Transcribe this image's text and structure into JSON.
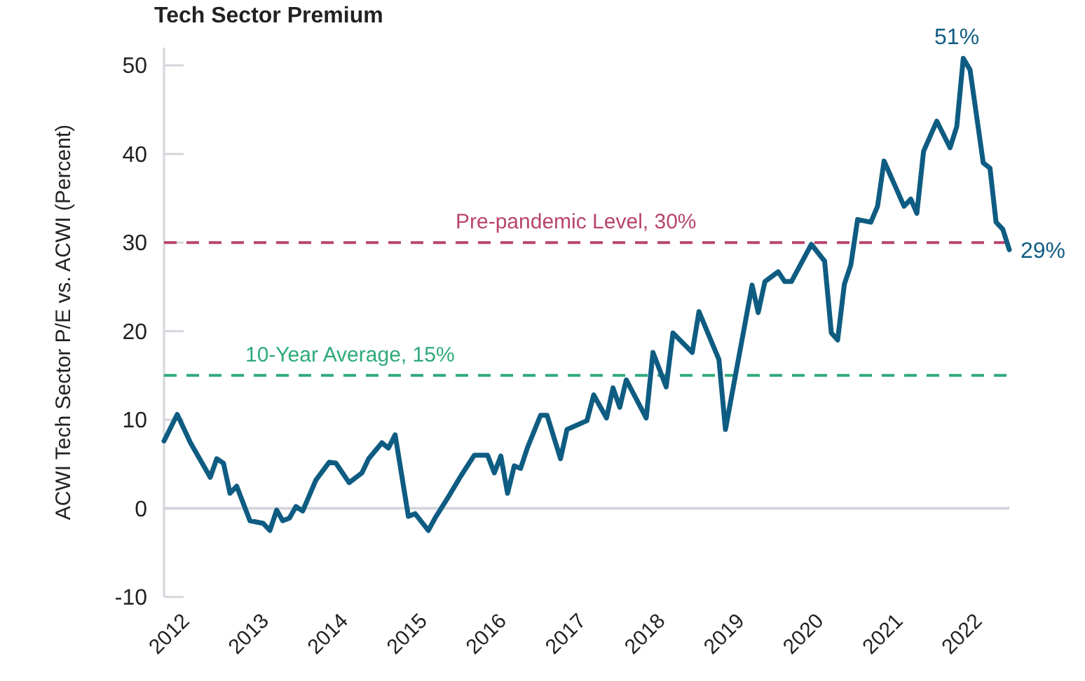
{
  "chart_data": {
    "type": "line",
    "title": "Tech Sector Premium",
    "ylabel": "ACWI Tech Sector P/E vs. ACWI (Percent)",
    "x": [
      "2011-09",
      "2011-11",
      "2012-01",
      "2012-04",
      "2012-05",
      "2012-06",
      "2012-07",
      "2012-08",
      "2012-10",
      "2012-12",
      "2013-01",
      "2013-02",
      "2013-03",
      "2013-04",
      "2013-05",
      "2013-06",
      "2013-08",
      "2013-10",
      "2013-11",
      "2014-01",
      "2014-03",
      "2014-04",
      "2014-06",
      "2014-07",
      "2014-08",
      "2014-10",
      "2014-11",
      "2015-01",
      "2015-02",
      "2015-04",
      "2015-06",
      "2015-08",
      "2015-10",
      "2015-11",
      "2015-12",
      "2016-01",
      "2016-02",
      "2016-03",
      "2016-04",
      "2016-06",
      "2016-07",
      "2016-09",
      "2016-10",
      "2017-01",
      "2017-02",
      "2017-04",
      "2017-05",
      "2017-06",
      "2017-07",
      "2017-10",
      "2017-11",
      "2018-01",
      "2018-02",
      "2018-05",
      "2018-06",
      "2018-09",
      "2018-10",
      "2019-02",
      "2019-03",
      "2019-04",
      "2019-06",
      "2019-07",
      "2019-08",
      "2019-11",
      "2020-01",
      "2020-02",
      "2020-03",
      "2020-04",
      "2020-05",
      "2020-06",
      "2020-08",
      "2020-09",
      "2020-10",
      "2021-01",
      "2021-02",
      "2021-03",
      "2021-04",
      "2021-06",
      "2021-08",
      "2021-09",
      "2021-10",
      "2021-11",
      "2022-01",
      "2022-02",
      "2022-03",
      "2022-04",
      "2022-05"
    ],
    "series": [
      {
        "color": "#0f5c82",
        "values": [
          7.6,
          10.6,
          7.4,
          3.5,
          5.6,
          5.1,
          1.7,
          2.5,
          -1.4,
          -1.7,
          -2.5,
          -0.2,
          -1.4,
          -1.1,
          0.2,
          -0.3,
          3.2,
          5.2,
          5.1,
          2.9,
          4.0,
          5.6,
          7.4,
          6.8,
          8.3,
          -0.9,
          -0.6,
          -2.5,
          -1.1,
          1.2,
          3.7,
          6.0,
          6.0,
          4.0,
          5.9,
          1.7,
          4.8,
          4.5,
          6.8,
          10.5,
          10.5,
          5.6,
          8.9,
          9.9,
          12.8,
          10.2,
          13.6,
          11.4,
          14.5,
          10.2,
          17.6,
          13.7,
          19.8,
          17.6,
          22.2,
          16.8,
          8.9,
          25.2,
          22.1,
          25.6,
          26.7,
          25.6,
          25.6,
          29.8,
          27.9,
          19.8,
          19.0,
          25.3,
          27.5,
          32.6,
          32.3,
          34.1,
          39.2,
          34.1,
          34.9,
          33.3,
          40.3,
          43.7,
          40.7,
          43.1,
          50.8,
          49.5,
          39.0,
          38.4,
          32.3,
          31.5,
          29.2
        ]
      }
    ],
    "xlim": [
      "2011-09",
      "2022-05"
    ],
    "xticks": [
      {
        "value": "2012",
        "label": "2012"
      },
      {
        "value": "2013",
        "label": "2013"
      },
      {
        "value": "2014",
        "label": "2014"
      },
      {
        "value": "2015",
        "label": "2015"
      },
      {
        "value": "2016",
        "label": "2016"
      },
      {
        "value": "2017",
        "label": "2017"
      },
      {
        "value": "2018",
        "label": "2018"
      },
      {
        "value": "2019",
        "label": "2019"
      },
      {
        "value": "2020",
        "label": "2020"
      },
      {
        "value": "2021",
        "label": "2021"
      },
      {
        "value": "2022",
        "label": "2022"
      }
    ],
    "ylim": [
      -10,
      52
    ],
    "yticks": [
      -10,
      0,
      10,
      20,
      30,
      40,
      50
    ],
    "ref_lines": [
      {
        "axis": "y",
        "value": 0,
        "color": "#d3d6dc",
        "line_style": "solid"
      },
      {
        "axis": "y",
        "value": 15,
        "label": "10-Year Average, 15%",
        "color": "#2eaa7a",
        "line_style": "dashed"
      },
      {
        "axis": "y",
        "value": 30,
        "label": "Pre-pandemic Level, 30%",
        "color": "#b8456e",
        "line_style": "dashed"
      }
    ],
    "annotations": [
      {
        "text": "51%",
        "x": "2021-09",
        "y": 50.8
      },
      {
        "text": "29%",
        "x": "2022-05",
        "y": 29.2
      }
    ],
    "line_style": "solid",
    "marker": "none"
  }
}
